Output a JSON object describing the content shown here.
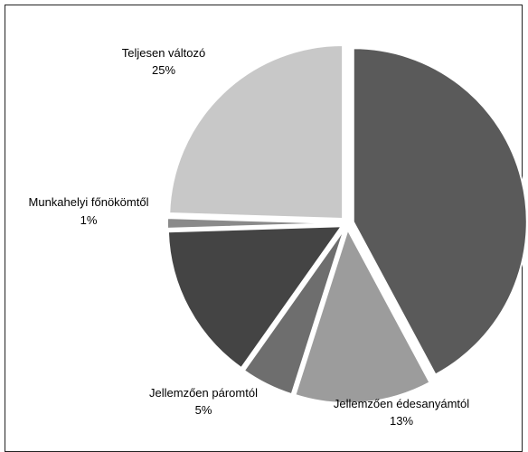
{
  "chart_data": {
    "type": "pie",
    "title": "",
    "slices": [
      {
        "label": "",
        "percent_label": "",
        "value": 43,
        "color": "#5a5a5a"
      },
      {
        "label": "Jellemzően édesanyámtól",
        "percent_label": "13%",
        "value": 13,
        "color": "#9c9c9c"
      },
      {
        "label": "Jellemzően páromtól",
        "percent_label": "5%",
        "value": 5,
        "color": "#6e6e6e"
      },
      {
        "label": "",
        "percent_label": "",
        "value": 15,
        "color": "#444444"
      },
      {
        "label": "Munkahelyi főnökömtől",
        "percent_label": "1%",
        "value": 1,
        "color": "#8a8a8a"
      },
      {
        "label": "Teljesen változó",
        "percent_label": "25%",
        "value": 25,
        "color": "#c8c8c8"
      }
    ]
  }
}
